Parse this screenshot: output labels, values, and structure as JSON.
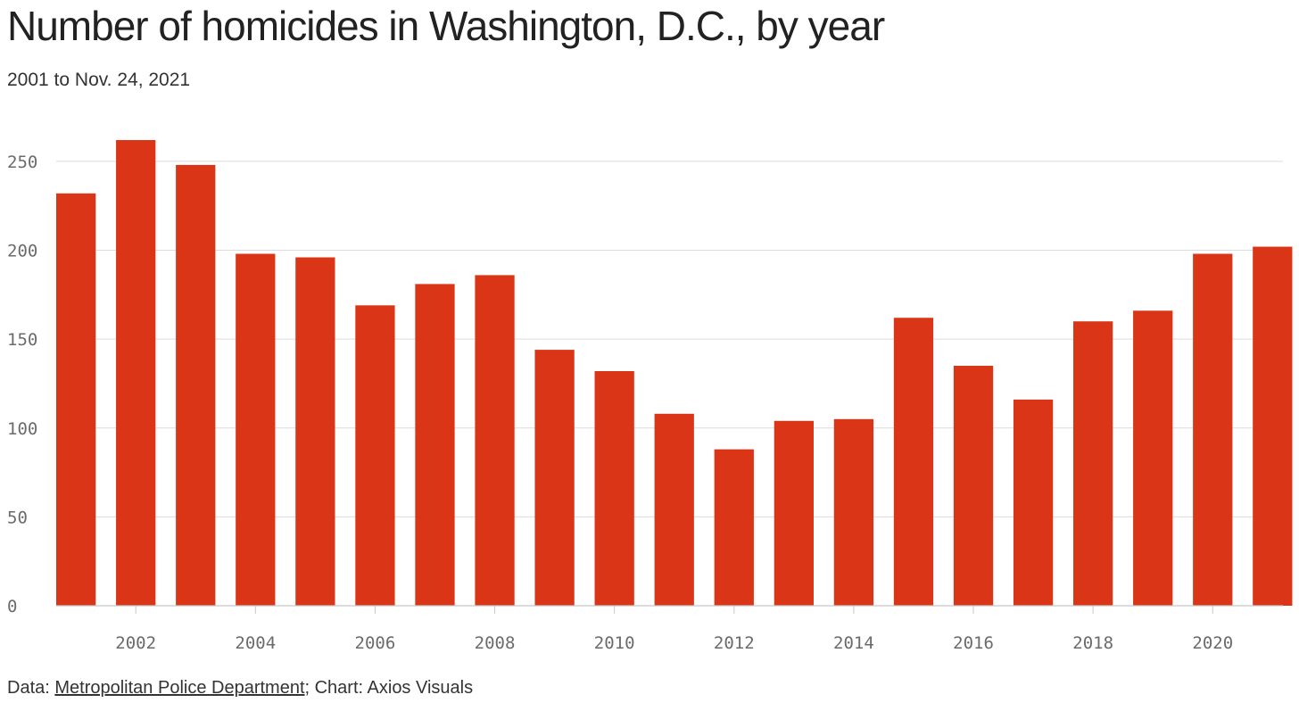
{
  "chart_data": {
    "type": "bar",
    "title": "Number of homicides in Washington, D.C., by year",
    "subtitle": "2001 to Nov. 24, 2021",
    "xlabel": "",
    "ylabel": "",
    "categories": [
      2001,
      2002,
      2003,
      2004,
      2005,
      2006,
      2007,
      2008,
      2009,
      2010,
      2011,
      2012,
      2013,
      2014,
      2015,
      2016,
      2017,
      2018,
      2019,
      2020,
      2021
    ],
    "values": [
      232,
      262,
      248,
      198,
      196,
      169,
      181,
      186,
      144,
      132,
      108,
      88,
      104,
      105,
      162,
      135,
      116,
      160,
      166,
      198,
      202
    ],
    "ylim": [
      0,
      262
    ],
    "yticks": [
      0,
      50,
      100,
      150,
      200,
      250
    ],
    "xticks": [
      2002,
      2004,
      2006,
      2008,
      2010,
      2012,
      2014,
      2016,
      2018,
      2020
    ],
    "grid": true,
    "legend": "none",
    "bar_color": "#d93516"
  },
  "footer": {
    "prefix": "Data: ",
    "source_link": "Metropolitan Police Department",
    "suffix": "; Chart: Axios Visuals"
  }
}
